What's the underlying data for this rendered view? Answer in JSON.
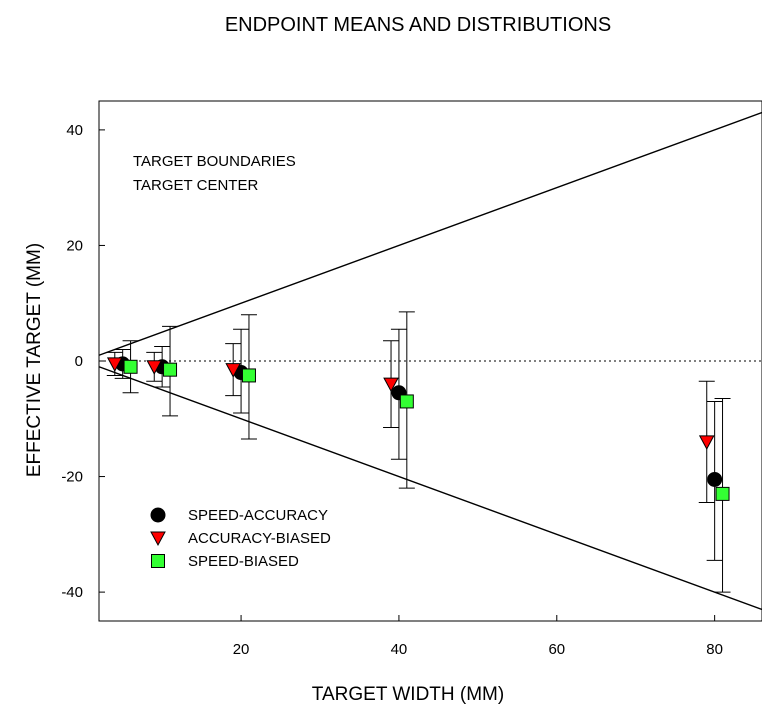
{
  "chart_data": {
    "type": "scatter",
    "title": "ENDPOINT MEANS AND DISTRIBUTIONS",
    "xlabel": "TARGET WIDTH (MM)",
    "ylabel": "EFFECTIVE TARGET (MM)",
    "xlim": [
      2,
      86
    ],
    "ylim": [
      -45,
      45
    ],
    "xticks": [
      20,
      40,
      60,
      80
    ],
    "yticks": [
      40,
      20,
      0,
      -20,
      -40
    ],
    "grid": false,
    "legend_position": "lower-left",
    "annotations": [
      "TARGET BOUNDARIES",
      "TARGET CENTER"
    ],
    "boundary_lines": {
      "upper_slope": 0.5,
      "lower_slope": -0.5
    },
    "center_line_y": 0,
    "series": [
      {
        "name": "SPEED-ACCURACY",
        "marker": "circle",
        "color": "#000000",
        "points": [
          {
            "x": 5,
            "y": -0.5,
            "err_low": -3.0,
            "err_high": 2.0
          },
          {
            "x": 10,
            "y": -1.0,
            "err_low": -4.5,
            "err_high": 2.5
          },
          {
            "x": 20,
            "y": -2.0,
            "err_low": -9.0,
            "err_high": 5.5
          },
          {
            "x": 40,
            "y": -5.5,
            "err_low": -17.0,
            "err_high": 5.5
          },
          {
            "x": 80,
            "y": -20.5,
            "err_low": -34.5,
            "err_high": -7.0
          }
        ]
      },
      {
        "name": "ACCURACY-BIASED",
        "marker": "triangle-down",
        "color": "#ff0000",
        "points": [
          {
            "x": 4,
            "y": -0.5,
            "err_low": -2.5,
            "err_high": 1.5
          },
          {
            "x": 9,
            "y": -1.0,
            "err_low": -3.5,
            "err_high": 1.5
          },
          {
            "x": 19,
            "y": -1.5,
            "err_low": -6.0,
            "err_high": 3.0
          },
          {
            "x": 39,
            "y": -4.0,
            "err_low": -11.5,
            "err_high": 3.5
          },
          {
            "x": 79,
            "y": -14.0,
            "err_low": -24.5,
            "err_high": -3.5
          }
        ]
      },
      {
        "name": "SPEED-BIASED",
        "marker": "square",
        "color": "#33ff33",
        "points": [
          {
            "x": 6,
            "y": -1.0,
            "err_low": -5.5,
            "err_high": 3.5
          },
          {
            "x": 11,
            "y": -1.5,
            "err_low": -9.5,
            "err_high": 6.0
          },
          {
            "x": 21,
            "y": -2.5,
            "err_low": -13.5,
            "err_high": 8.0
          },
          {
            "x": 41,
            "y": -7.0,
            "err_low": -22.0,
            "err_high": 8.5
          },
          {
            "x": 81,
            "y": -23.0,
            "err_low": -40.0,
            "err_high": -6.5
          }
        ]
      }
    ]
  }
}
